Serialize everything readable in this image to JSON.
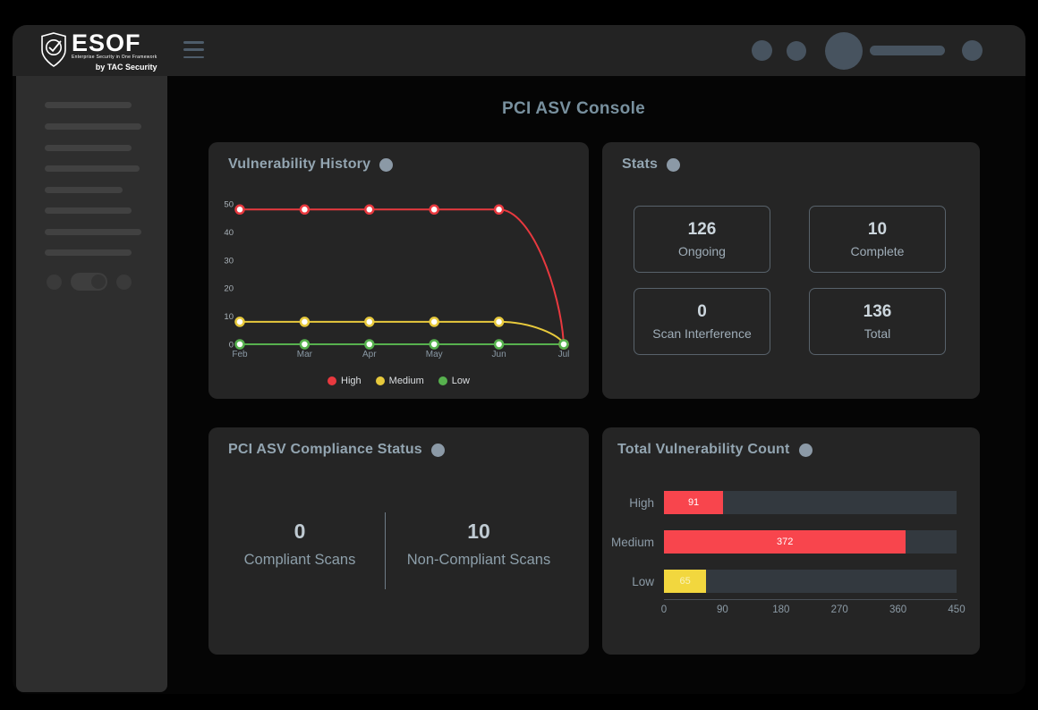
{
  "header": {
    "logo": {
      "title": "ESOF",
      "subtitle": "Enterprise Security in One Framework",
      "byline": "by TAC Security"
    },
    "icons": {
      "menu": "hamburger-menu-icon",
      "logo_mark": "shield-check-icon",
      "right_placeholders": [
        "avatar-circle-small",
        "avatar-circle-small",
        "avatar-circle-large",
        "search-pill-placeholder",
        "avatar-circle-small"
      ]
    }
  },
  "sidebar": {
    "note_icons": [
      "nav-skeleton-bars",
      "theme-toggle"
    ]
  },
  "main": {
    "title": "PCI ASV Console"
  },
  "cards": {
    "vulnerability_history": {
      "title": "Vulnerability History",
      "badge_icon": "info-dot-icon"
    },
    "stats": {
      "title": "Stats",
      "badge_icon": "info-dot-icon",
      "items": [
        {
          "value": "126",
          "label": "Ongoing"
        },
        {
          "value": "10",
          "label": "Complete"
        },
        {
          "value": "0",
          "label": "Scan Interference"
        },
        {
          "value": "136",
          "label": "Total"
        }
      ]
    },
    "compliance": {
      "title": "PCI ASV Compliance Status",
      "badge_icon": "info-dot-icon",
      "left": {
        "value": "0",
        "label": "Compliant Scans"
      },
      "right": {
        "value": "10",
        "label": "Non-Compliant Scans"
      }
    },
    "total_vulnerability_count": {
      "title": "Total Vulnerability Count",
      "badge_icon": "info-dot-icon"
    }
  },
  "chart_data": [
    {
      "id": "vulnerability_history",
      "type": "line",
      "title": "Vulnerability History",
      "x": [
        "Feb",
        "Mar",
        "Apr",
        "May",
        "Jun",
        "Jul"
      ],
      "series": [
        {
          "name": "High",
          "color": "#e8393f",
          "values": [
            48,
            48,
            48,
            48,
            48,
            0
          ]
        },
        {
          "name": "Medium",
          "color": "#e7c93c",
          "values": [
            8,
            8,
            8,
            8,
            8,
            0
          ]
        },
        {
          "name": "Low",
          "color": "#57b14e",
          "values": [
            0,
            0,
            0,
            0,
            0,
            0
          ]
        }
      ],
      "ylim": [
        0,
        50
      ],
      "yticks": [
        0,
        10,
        20,
        30,
        40,
        50
      ],
      "grid": false,
      "legend_position": "bottom",
      "point_style": "white-filled circle with colored ring"
    },
    {
      "id": "total_vulnerability_count",
      "type": "bar",
      "orientation": "horizontal",
      "title": "Total Vulnerability Count",
      "categories": [
        "High",
        "Medium",
        "Low"
      ],
      "values": [
        91,
        372,
        65
      ],
      "bar_colors": [
        "#f8454d",
        "#f8454d",
        "#f2d73e"
      ],
      "value_label_colors": [
        "#ffffff",
        "#ffffff",
        "#f9f3bd"
      ],
      "track_color": "#33393f",
      "xlim": [
        0,
        450
      ],
      "xticks": [
        0,
        90,
        180,
        270,
        360,
        450
      ]
    }
  ],
  "colors": {
    "canvas_bg": "#000000",
    "header_bg": "#232323",
    "sidebar_bg": "#2e2e2e",
    "card_bg": "#252525",
    "slate_text": "#93a5b1",
    "accent_red": "#f8454d",
    "accent_yellow": "#f2d73e",
    "accent_green": "#57b14e"
  }
}
